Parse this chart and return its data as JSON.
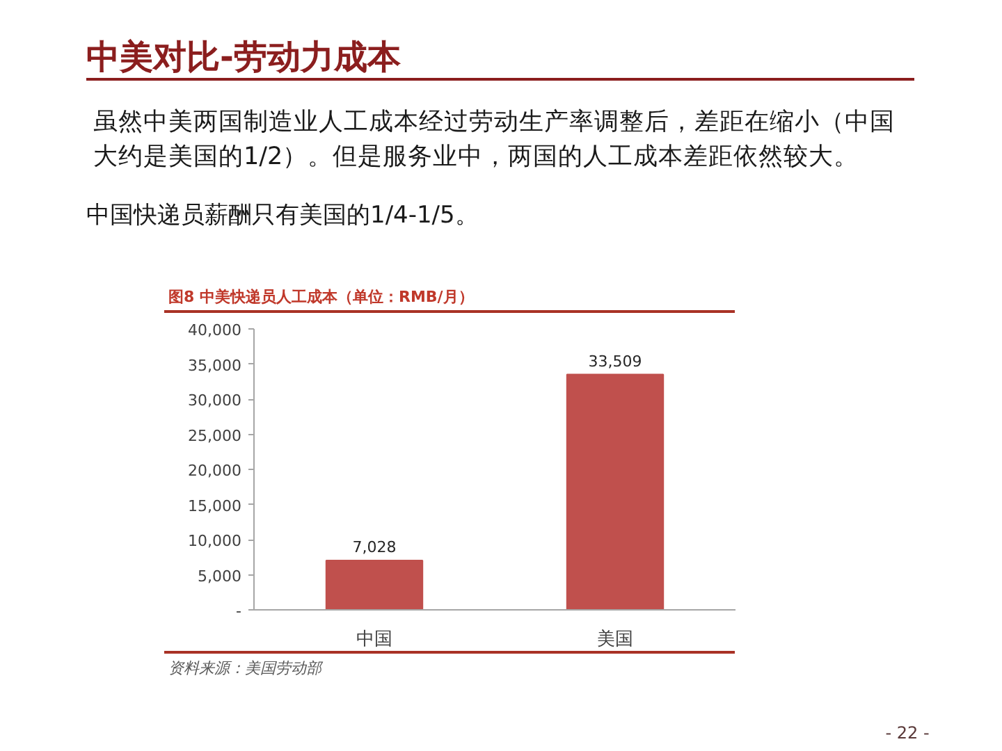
{
  "chart_data": {
    "type": "bar",
    "title": "中美对比-劳动力成本",
    "subtitle": "图8 中美快递员人工成本（单位：RMB/月）",
    "annotations": [
      "虽然中美两国制造业人工成本经过劳动生产率调整后，差距在缩小（中国大约是美国的1/2）。但是服务业中，两国的人工成本差距依然较大。",
      "中国快递员薪酬只有美国的1/4-1/5。",
      "资料来源：美国劳动部",
      "- 22 -"
    ],
    "categories": [
      "中国",
      "美国"
    ],
    "values": [
      7028,
      33509
    ],
    "color": "#c0504d",
    "value_labels": [
      "7,028",
      "33,509"
    ],
    "ylim": [
      0,
      40000
    ],
    "yticks": [
      {
        "value": 0,
        "label": "-"
      },
      {
        "value": 5000,
        "label": "5,000"
      },
      {
        "value": 10000,
        "label": "10,000"
      },
      {
        "value": 15000,
        "label": "15,000"
      },
      {
        "value": 20000,
        "label": "20,000"
      },
      {
        "value": 25000,
        "label": "25,000"
      },
      {
        "value": 30000,
        "label": "30,000"
      },
      {
        "value": 35000,
        "label": "35,000"
      },
      {
        "value": 40000,
        "label": "40,000"
      }
    ],
    "grid": false
  }
}
